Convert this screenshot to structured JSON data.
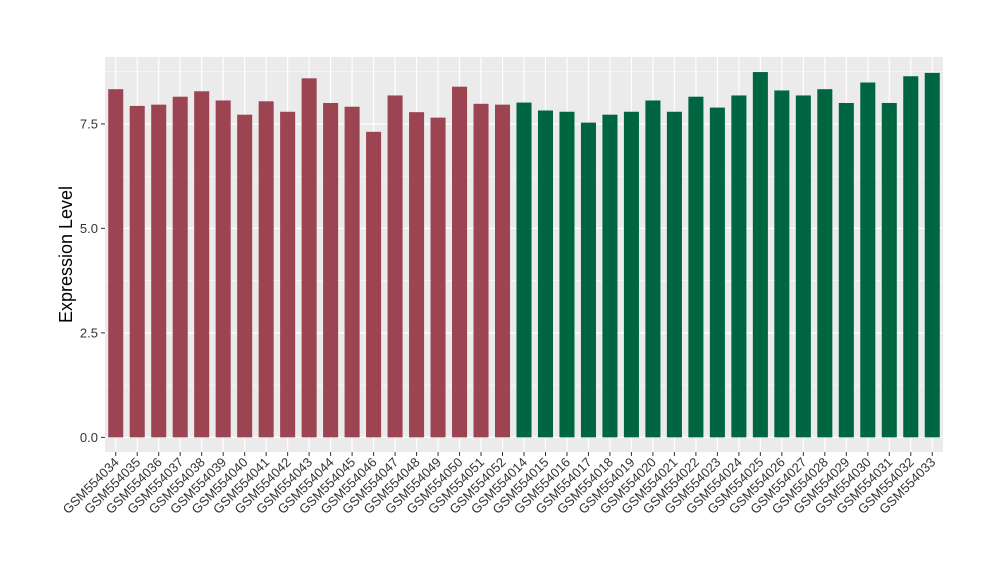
{
  "chart_data": {
    "type": "bar",
    "title": "",
    "xlabel": "",
    "ylabel": "Expression Level",
    "ylim": [
      -0.35,
      9.1
    ],
    "yticks": [
      0.0,
      2.5,
      5.0,
      7.5
    ],
    "ytick_labels": [
      "0.0",
      "2.5",
      "5.0",
      "7.5"
    ],
    "grid": true,
    "legend": "none",
    "colors": {
      "group_a": "#9C4452",
      "group_b": "#006642",
      "panel_bg": "#EBEBEB",
      "grid": "#FFFFFF"
    },
    "categories": [
      "GSM554034",
      "GSM554035",
      "GSM554036",
      "GSM554037",
      "GSM554038",
      "GSM554039",
      "GSM554040",
      "GSM554041",
      "GSM554042",
      "GSM554043",
      "GSM554044",
      "GSM554045",
      "GSM554046",
      "GSM554047",
      "GSM554048",
      "GSM554049",
      "GSM554050",
      "GSM554051",
      "GSM554052",
      "GSM554014",
      "GSM554015",
      "GSM554016",
      "GSM554017",
      "GSM554018",
      "GSM554019",
      "GSM554020",
      "GSM554021",
      "GSM554022",
      "GSM554023",
      "GSM554024",
      "GSM554025",
      "GSM554026",
      "GSM554027",
      "GSM554028",
      "GSM554029",
      "GSM554030",
      "GSM554031",
      "GSM554032",
      "GSM554033"
    ],
    "values": [
      8.33,
      7.93,
      7.96,
      8.15,
      8.28,
      8.06,
      7.72,
      8.04,
      7.79,
      8.59,
      8.0,
      7.91,
      7.31,
      8.18,
      7.78,
      7.65,
      8.39,
      7.98,
      7.96,
      8.01,
      7.82,
      7.79,
      7.53,
      7.72,
      7.79,
      8.06,
      7.79,
      8.15,
      7.89,
      8.18,
      8.74,
      8.3,
      8.18,
      8.33,
      8.0,
      8.49,
      8.0,
      8.64,
      8.72
    ],
    "groups": [
      "a",
      "a",
      "a",
      "a",
      "a",
      "a",
      "a",
      "a",
      "a",
      "a",
      "a",
      "a",
      "a",
      "a",
      "a",
      "a",
      "a",
      "a",
      "a",
      "b",
      "b",
      "b",
      "b",
      "b",
      "b",
      "b",
      "b",
      "b",
      "b",
      "b",
      "b",
      "b",
      "b",
      "b",
      "b",
      "b",
      "b",
      "b",
      "b"
    ]
  }
}
